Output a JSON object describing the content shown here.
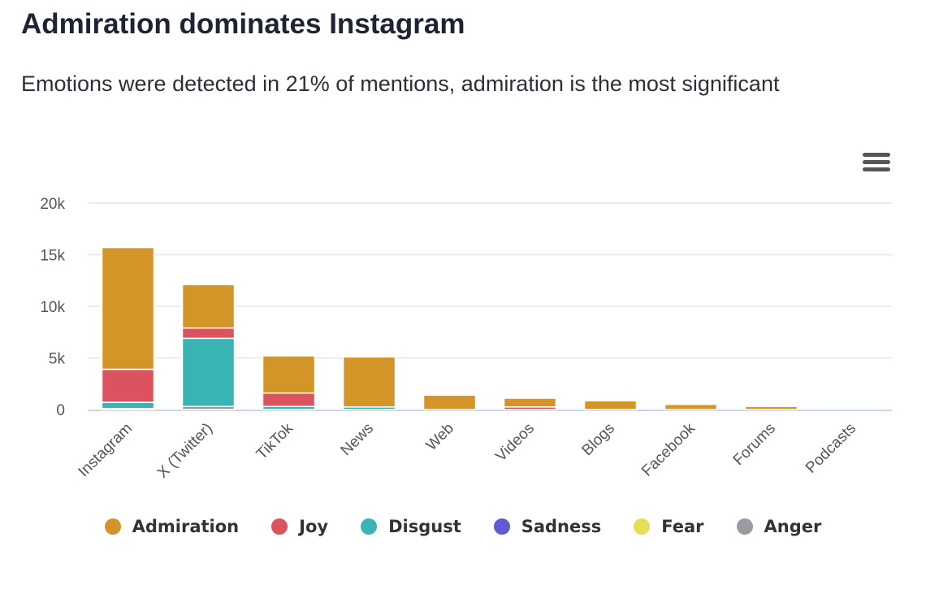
{
  "header": {
    "title": "Admiration dominates Instagram",
    "subtitle": "Emotions were detected in 21% of mentions, admiration is the most significant"
  },
  "menu_icon": "hamburger-menu-icon",
  "chart_data": {
    "type": "bar",
    "stacked": true,
    "title": "",
    "xlabel": "",
    "ylabel": "",
    "categories": [
      "Instagram",
      "X (Twitter)",
      "TikTok",
      "News",
      "Web",
      "Videos",
      "Blogs",
      "Facebook",
      "Forums",
      "Podcasts"
    ],
    "ylim": [
      0,
      20000
    ],
    "yticks": [
      {
        "v": 0,
        "label": "0"
      },
      {
        "v": 5000,
        "label": "5k"
      },
      {
        "v": 10000,
        "label": "10k"
      },
      {
        "v": 15000,
        "label": "15k"
      },
      {
        "v": 20000,
        "label": "20k"
      }
    ],
    "grid": true,
    "legend": "bottom",
    "series": [
      {
        "name": "Admiration",
        "color": "#d49528",
        "values": [
          11800,
          4200,
          3600,
          4850,
          1400,
          850,
          850,
          500,
          300,
          0
        ]
      },
      {
        "name": "Joy",
        "color": "#dc5360",
        "values": [
          3200,
          1000,
          1300,
          0,
          0,
          250,
          0,
          0,
          0,
          0
        ]
      },
      {
        "name": "Disgust",
        "color": "#37b4b3",
        "values": [
          600,
          6600,
          300,
          250,
          0,
          0,
          0,
          0,
          0,
          0
        ]
      },
      {
        "name": "Sadness",
        "color": "#6259d6",
        "values": [
          0,
          0,
          0,
          0,
          0,
          0,
          0,
          0,
          0,
          0
        ]
      },
      {
        "name": "Fear",
        "color": "#e3df59",
        "values": [
          0,
          0,
          0,
          0,
          0,
          0,
          0,
          0,
          0,
          0
        ]
      },
      {
        "name": "Anger",
        "color": "#9a9ba0",
        "values": [
          100,
          300,
          0,
          0,
          0,
          0,
          0,
          0,
          0,
          0
        ]
      }
    ]
  }
}
